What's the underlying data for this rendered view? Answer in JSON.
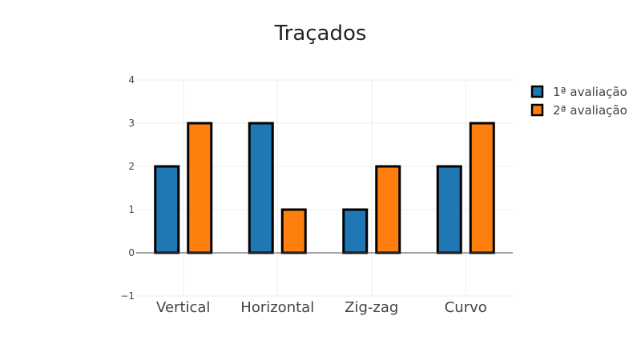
{
  "chart_data": {
    "type": "bar",
    "title": "Traçados",
    "xlabel": "",
    "ylabel": "",
    "categories": [
      "Vertical",
      "Horizontal",
      "Zig-zag",
      "Curvo"
    ],
    "series": [
      {
        "name": "1ª avaliação",
        "values": [
          2,
          3,
          1,
          2
        ],
        "color": "#1f77b4"
      },
      {
        "name": "2ª avaliação",
        "values": [
          3,
          1,
          2,
          3
        ],
        "color": "#ff7f0e"
      }
    ],
    "ylim": [
      -1,
      4
    ],
    "yticks": [
      -1,
      0,
      1,
      2,
      3,
      4
    ],
    "ytick_labels": [
      "−1",
      "0",
      "1",
      "2",
      "3",
      "4"
    ],
    "grid": true,
    "legend_position": "top-right",
    "bar_outline_color": "#000000"
  }
}
